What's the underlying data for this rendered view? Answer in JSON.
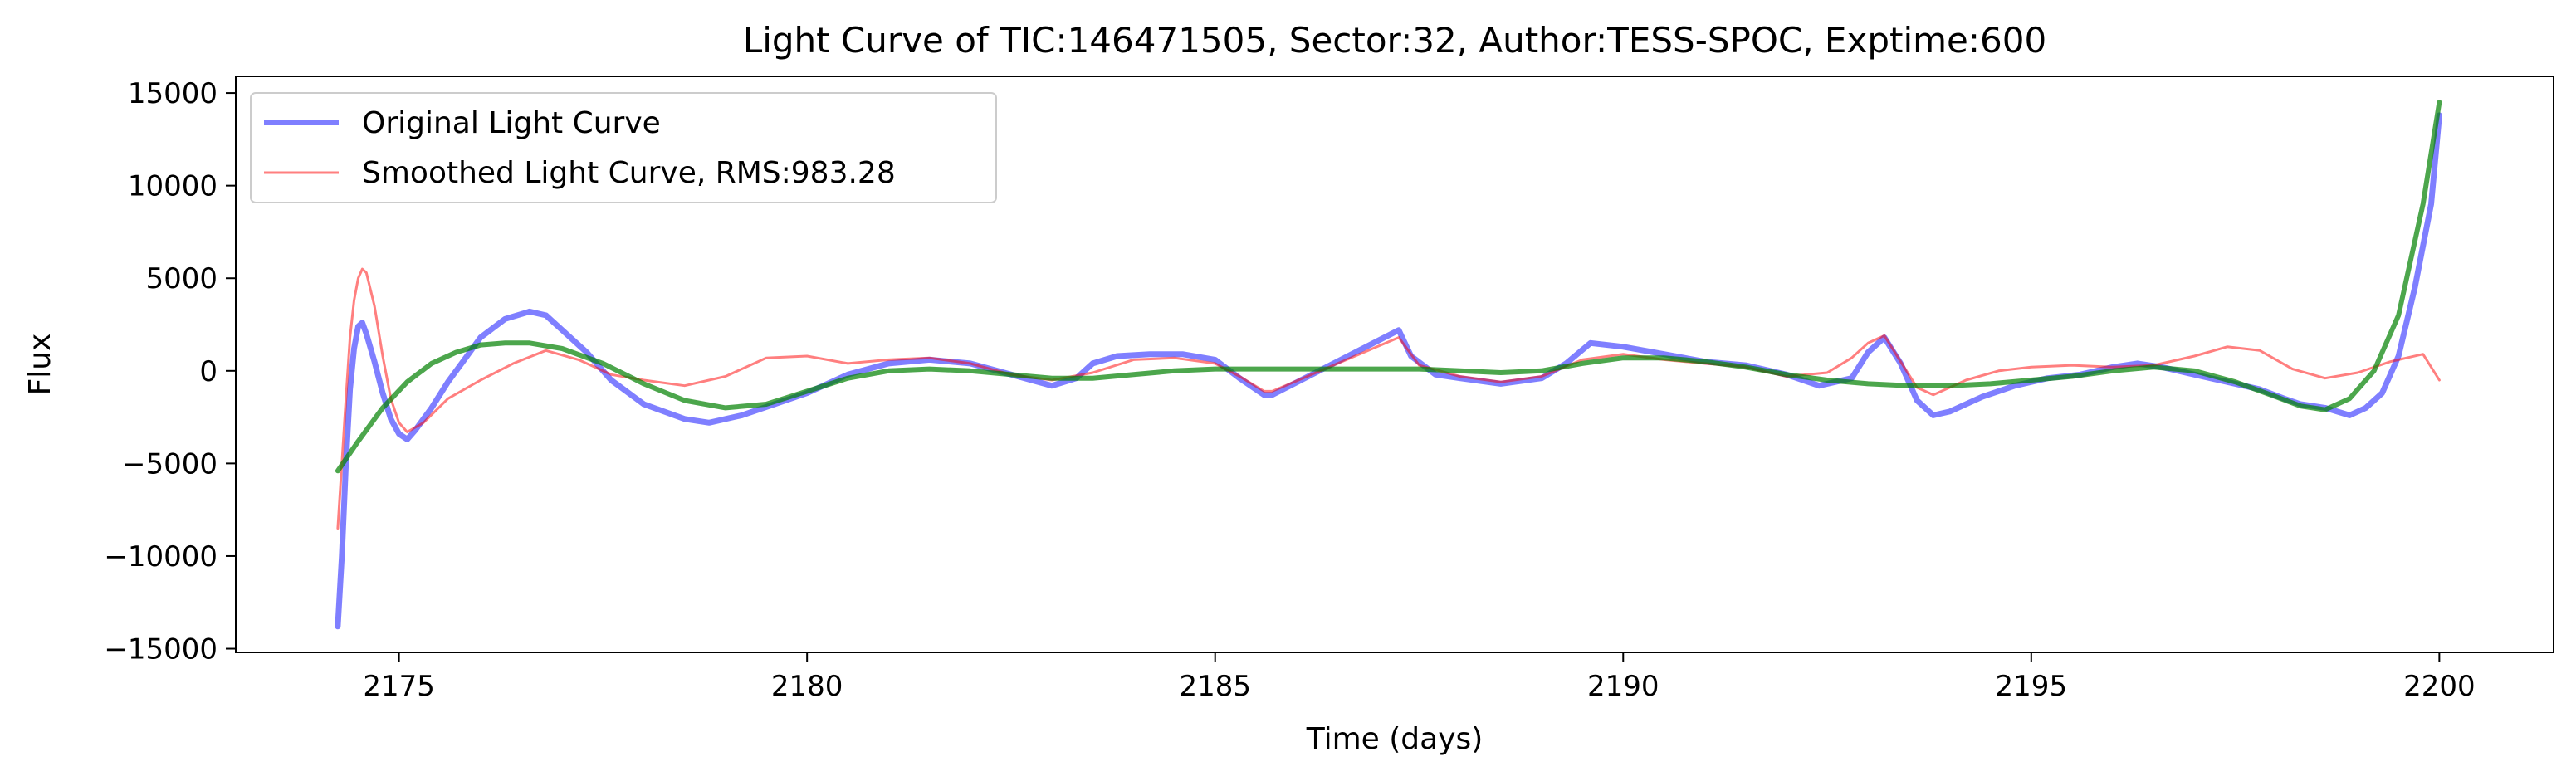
{
  "chart_data": {
    "type": "line",
    "title": "Light Curve of TIC:146471505, Sector:32, Author:TESS-SPOC, Exptime:600",
    "xlabel": "Time (days)",
    "ylabel": "Flux",
    "xlim": [
      2173.0,
      2201.4
    ],
    "ylim": [
      -15200,
      15900
    ],
    "xticks": [
      2175,
      2180,
      2185,
      2190,
      2195,
      2200
    ],
    "yticks": [
      -15000,
      -10000,
      -5000,
      0,
      5000,
      10000,
      15000
    ],
    "xtick_labels": [
      "2175",
      "2180",
      "2185",
      "2190",
      "2195",
      "2200"
    ],
    "ytick_labels": [
      "−15000",
      "−10000",
      "−5000",
      "0",
      "5000",
      "10000",
      "15000"
    ],
    "grid": false,
    "legend_position": "top-left",
    "series": [
      {
        "name": "Original Light Curve",
        "color": "#0000ff",
        "x": [
          2174.25,
          2174.3,
          2174.35,
          2174.4,
          2174.45,
          2174.5,
          2174.55,
          2174.6,
          2174.7,
          2174.8,
          2174.9,
          2175.0,
          2175.1,
          2175.2,
          2175.4,
          2175.6,
          2175.8,
          2176.0,
          2176.3,
          2176.6,
          2176.8,
          2177.0,
          2177.3,
          2177.6,
          2178.0,
          2178.5,
          2178.8,
          2179.2,
          2179.6,
          2180.0,
          2180.5,
          2181.0,
          2181.5,
          2182.0,
          2182.5,
          2183.0,
          2183.3,
          2183.5,
          2183.8,
          2184.2,
          2184.6,
          2185.0,
          2185.3,
          2185.6,
          2185.7,
          2187.25,
          2187.4,
          2187.7,
          2188.0,
          2188.5,
          2189.0,
          2189.3,
          2189.6,
          2190.0,
          2190.5,
          2191.0,
          2191.5,
          2192.0,
          2192.4,
          2192.8,
          2193.0,
          2193.2,
          2193.4,
          2193.6,
          2193.8,
          2194.0,
          2194.4,
          2194.8,
          2195.2,
          2195.6,
          2196.0,
          2196.3,
          2196.6,
          2197.0,
          2197.4,
          2197.8,
          2198.1,
          2198.3,
          2198.6,
          2198.9,
          2199.1,
          2199.3,
          2199.5,
          2199.7,
          2199.9,
          2200.0
        ],
        "y": [
          -13800,
          -10000,
          -5000,
          -1000,
          1200,
          2400,
          2600,
          2000,
          500,
          -1200,
          -2600,
          -3400,
          -3700,
          -3200,
          -2000,
          -600,
          600,
          1800,
          2800,
          3200,
          3000,
          2200,
          1000,
          -500,
          -1800,
          -2600,
          -2800,
          -2400,
          -1800,
          -1200,
          -200,
          400,
          600,
          400,
          -200,
          -800,
          -400,
          400,
          800,
          900,
          900,
          600,
          -400,
          -1300,
          -1300,
          2200,
          800,
          -200,
          -400,
          -700,
          -400,
          400,
          1500,
          1300,
          900,
          500,
          300,
          -200,
          -800,
          -400,
          1000,
          1800,
          400,
          -1600,
          -2400,
          -2200,
          -1400,
          -800,
          -400,
          -200,
          200,
          400,
          200,
          -200,
          -600,
          -1000,
          -1500,
          -1800,
          -2000,
          -2400,
          -2000,
          -1200,
          800,
          4500,
          9000,
          13800
        ]
      },
      {
        "name": "Smoothed Light Curve, RMS:983.28",
        "color": "#ff0000",
        "x": [
          2174.25,
          2174.3,
          2174.35,
          2174.4,
          2174.45,
          2174.5,
          2174.55,
          2174.6,
          2174.7,
          2174.8,
          2174.9,
          2175.0,
          2175.1,
          2175.3,
          2175.6,
          2176.0,
          2176.4,
          2176.8,
          2177.2,
          2177.6,
          2178.0,
          2178.5,
          2179.0,
          2179.5,
          2180.0,
          2180.5,
          2181.0,
          2181.5,
          2182.0,
          2182.5,
          2183.0,
          2183.5,
          2184.0,
          2184.5,
          2185.0,
          2185.3,
          2185.6,
          2185.7,
          2187.25,
          2187.5,
          2188.0,
          2188.5,
          2189.0,
          2189.5,
          2190.0,
          2190.5,
          2191.0,
          2191.5,
          2192.0,
          2192.5,
          2192.8,
          2193.0,
          2193.2,
          2193.4,
          2193.6,
          2193.8,
          2194.2,
          2194.6,
          2195.0,
          2195.5,
          2196.0,
          2196.5,
          2197.0,
          2197.4,
          2197.8,
          2198.2,
          2198.6,
          2199.0,
          2199.4,
          2199.8,
          2200.0
        ],
        "y": [
          -8500,
          -5000,
          -1500,
          1800,
          3800,
          5000,
          5500,
          5300,
          3500,
          800,
          -1500,
          -2800,
          -3300,
          -2800,
          -1500,
          -500,
          400,
          1100,
          600,
          -200,
          -500,
          -800,
          -300,
          700,
          800,
          400,
          600,
          700,
          400,
          -200,
          -500,
          -100,
          600,
          700,
          400,
          -300,
          -1100,
          -1100,
          1800,
          300,
          -300,
          -600,
          -300,
          600,
          900,
          600,
          400,
          200,
          -300,
          -100,
          700,
          1500,
          1900,
          500,
          -900,
          -1300,
          -500,
          0,
          200,
          300,
          200,
          300,
          800,
          1300,
          1100,
          100,
          -400,
          -100,
          500,
          900,
          -500
        ]
      },
      {
        "name": "",
        "color": "#008000",
        "x": [
          2174.25,
          2174.5,
          2174.8,
          2175.1,
          2175.4,
          2175.7,
          2176.0,
          2176.3,
          2176.6,
          2177.0,
          2177.5,
          2178.0,
          2178.5,
          2179.0,
          2179.5,
          2180.0,
          2180.5,
          2181.0,
          2181.5,
          2182.0,
          2182.5,
          2183.0,
          2183.5,
          2184.0,
          2184.5,
          2185.0,
          2185.5,
          2186.0,
          2186.5,
          2187.0,
          2187.5,
          2188.0,
          2188.5,
          2189.0,
          2189.5,
          2190.0,
          2190.5,
          2191.0,
          2191.5,
          2192.0,
          2192.5,
          2193.0,
          2193.5,
          2194.0,
          2194.5,
          2195.0,
          2195.5,
          2196.0,
          2196.5,
          2197.0,
          2197.5,
          2198.0,
          2198.3,
          2198.6,
          2198.9,
          2199.2,
          2199.5,
          2199.8,
          2200.0
        ],
        "y": [
          -5400,
          -3800,
          -2000,
          -600,
          400,
          1000,
          1400,
          1500,
          1500,
          1200,
          400,
          -700,
          -1600,
          -2000,
          -1800,
          -1100,
          -400,
          0,
          100,
          0,
          -200,
          -400,
          -400,
          -200,
          0,
          100,
          100,
          100,
          100,
          100,
          100,
          0,
          -100,
          0,
          400,
          700,
          700,
          500,
          200,
          -200,
          -500,
          -700,
          -800,
          -800,
          -700,
          -500,
          -300,
          0,
          200,
          0,
          -600,
          -1400,
          -1900,
          -2100,
          -1500,
          0,
          3000,
          9000,
          14500
        ]
      }
    ]
  }
}
